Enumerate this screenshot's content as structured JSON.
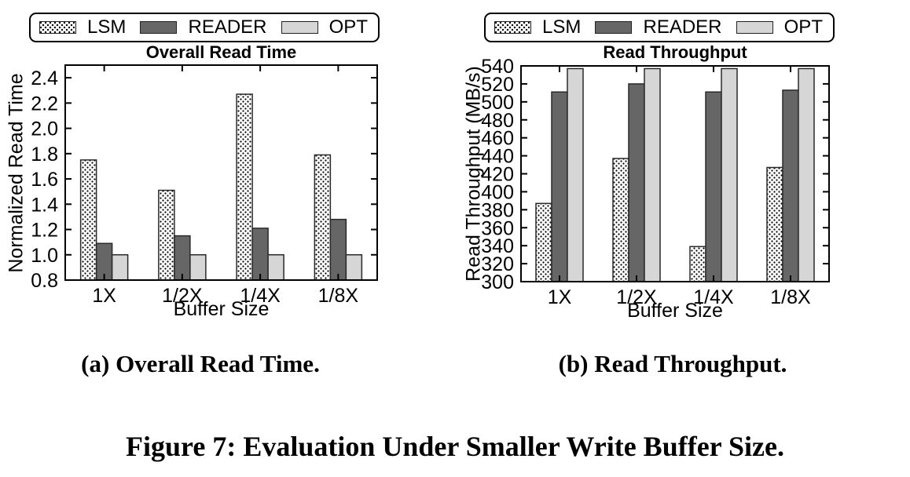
{
  "figure": {
    "caption": "Figure 7: Evaluation Under Smaller Write Buffer Size.",
    "subcaption_a": "(a) Overall Read Time.",
    "subcaption_b": "(b) Read Throughput."
  },
  "legend": {
    "entries": [
      {
        "label": "LSM",
        "swatch": "dotted-pattern"
      },
      {
        "label": "READER",
        "swatch": "solid"
      },
      {
        "label": "OPT",
        "swatch": "solid"
      }
    ]
  },
  "colors": {
    "lsm_fill": "#ffffff",
    "reader_fill": "#666666",
    "opt_fill": "#d6d6d6",
    "bar_border": "#2a2a2a",
    "axis": "#000000"
  },
  "chart_data": [
    {
      "type": "bar",
      "title": "Overall Read Time",
      "xlabel": "Buffer Size",
      "ylabel": "Normalized Read Time",
      "categories": [
        "1X",
        "1/2X",
        "1/4X",
        "1/8X"
      ],
      "series": [
        {
          "name": "LSM",
          "values": [
            1.75,
            1.51,
            2.27,
            1.79
          ]
        },
        {
          "name": "READER",
          "values": [
            1.09,
            1.15,
            1.21,
            1.28
          ]
        },
        {
          "name": "OPT",
          "values": [
            1.0,
            1.0,
            1.0,
            1.0
          ]
        }
      ],
      "ylim": [
        0.8,
        2.5
      ],
      "yticks": [
        "0.8",
        "1.0",
        "1.2",
        "1.4",
        "1.6",
        "1.8",
        "2.0",
        "2.2",
        "2.4"
      ],
      "grid": false,
      "legend_position": "top"
    },
    {
      "type": "bar",
      "title": "Read Throughput",
      "xlabel": "Buffer Size",
      "ylabel": "Read Throughput (MB/s)",
      "categories": [
        "1X",
        "1/2X",
        "1/4X",
        "1/8X"
      ],
      "series": [
        {
          "name": "LSM",
          "values": [
            387,
            437,
            339,
            427
          ]
        },
        {
          "name": "READER",
          "values": [
            511,
            520,
            511,
            513
          ]
        },
        {
          "name": "OPT",
          "values": [
            537,
            537,
            537,
            537
          ]
        }
      ],
      "ylim": [
        300,
        540
      ],
      "yticks": [
        "300",
        "320",
        "340",
        "360",
        "380",
        "400",
        "420",
        "440",
        "460",
        "480",
        "500",
        "520",
        "540"
      ],
      "grid": false,
      "legend_position": "top"
    }
  ]
}
